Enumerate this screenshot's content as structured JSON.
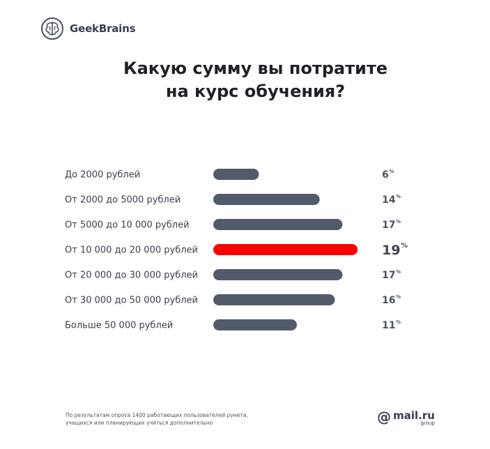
{
  "brand": {
    "name": "GeekBrains",
    "icon": "brain-icon"
  },
  "title_line1": "Какую сумму вы потратите",
  "title_line2": "на курс обучения?",
  "chart_data": {
    "type": "bar",
    "orientation": "horizontal",
    "categories": [
      "До 2000 рублей",
      "От 2000 до 5000 рублей",
      "От 5000 до 10 000 рублей",
      "От 10 000 до 20 000 рублей",
      "От 20 000 до 30 000 рублей",
      "От 30 000 до 50 000 рублей",
      "Больше 50 000 рублей"
    ],
    "values": [
      6,
      14,
      17,
      19,
      17,
      16,
      11
    ],
    "unit": "%",
    "highlight_index": 3,
    "bar_color": "#525a6b",
    "highlight_color": "#ff0000"
  },
  "footer": {
    "line1": "По результатам опроса 1400 работающих пользователей рунета,",
    "line2": "учащихся или планирующих учиться дополнительно"
  },
  "partner": {
    "at": "@",
    "name": "mail.ru",
    "group": "group"
  }
}
